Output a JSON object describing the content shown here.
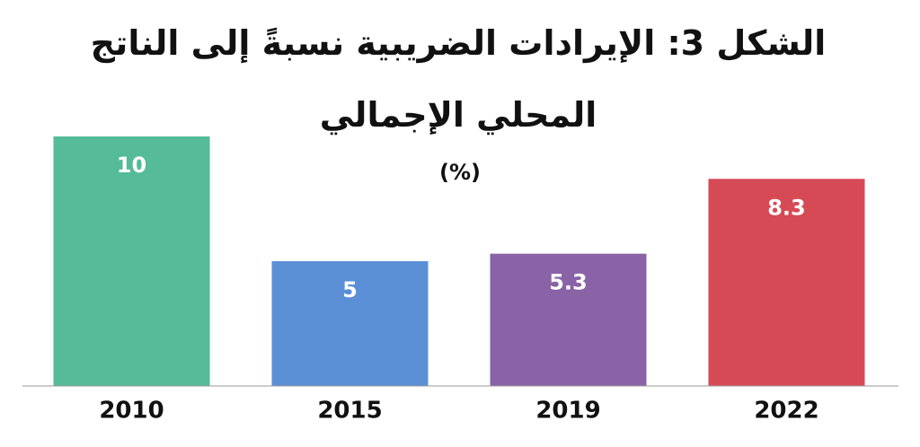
{
  "chart_data": {
    "type": "bar",
    "title": "الشكل 3: الإيرادات الضريبية نسبةً إلى الناتج المحلي الإجمالي",
    "subtitle": "(%)",
    "categories": [
      "2010",
      "2015",
      "2019",
      "2022"
    ],
    "values": [
      10,
      5,
      5.3,
      8.3
    ],
    "colors": [
      "#55bb99",
      "#5a8fd6",
      "#8a62a6",
      "#d64a55"
    ],
    "ylim": [
      0,
      10
    ]
  }
}
